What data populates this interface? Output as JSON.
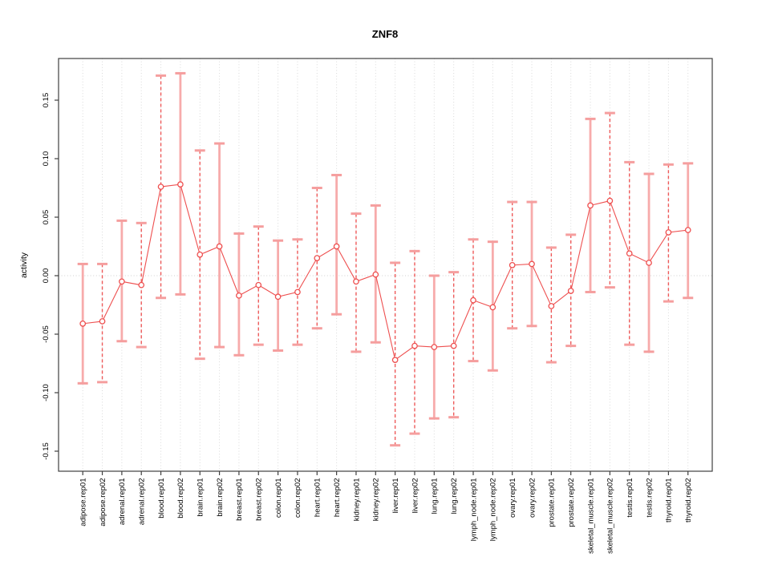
{
  "title": "ZNF8",
  "chart_data": {
    "type": "scatter",
    "title": "ZNF8",
    "xlabel": "",
    "ylabel": "activity",
    "legend": "none",
    "grid": "dotted vertical gridline per category; dotted horizontal line at y=0",
    "ylim": [
      -0.167,
      0.186
    ],
    "yticks": [
      0.15,
      0.1,
      0.05,
      0.0,
      -0.05,
      -0.1,
      -0.15
    ],
    "ytick_labels": [
      "0.15",
      "0.10",
      "0.05",
      "0.00",
      "-0.05",
      "-0.10",
      "-0.15"
    ],
    "categories": [
      "adipose.rep01",
      "adipose.rep02",
      "adrenal.rep01",
      "adrenal.rep02",
      "blood.rep01",
      "blood.rep02",
      "brain.rep01",
      "brain.rep02",
      "breast.rep01",
      "breast.rep02",
      "colon.rep01",
      "colon.rep02",
      "heart.rep01",
      "heart.rep02",
      "kidney.rep01",
      "kidney.rep02",
      "liver.rep01",
      "liver.rep02",
      "lung.rep01",
      "lung.rep02",
      "lymph_node.rep01",
      "lymph_node.rep02",
      "ovary.rep01",
      "ovary.rep02",
      "prostate.rep01",
      "prostate.rep02",
      "skeletal_muscle.rep01",
      "skeletal_muscle.rep02",
      "testis.rep01",
      "testis.rep02",
      "thyroid.rep01",
      "thyroid.rep02"
    ],
    "series": [
      {
        "name": "activity",
        "mid": [
          -0.041,
          -0.039,
          -0.005,
          -0.008,
          0.076,
          0.078,
          0.018,
          0.025,
          -0.017,
          -0.008,
          -0.018,
          -0.014,
          0.015,
          0.025,
          -0.005,
          0.001,
          -0.072,
          -0.06,
          -0.061,
          -0.06,
          -0.021,
          -0.027,
          0.009,
          0.01,
          -0.026,
          -0.013,
          0.06,
          0.064,
          0.019,
          0.011,
          0.037,
          0.039
        ],
        "lo": [
          -0.092,
          -0.091,
          -0.056,
          -0.061,
          -0.019,
          -0.016,
          -0.071,
          -0.061,
          -0.068,
          -0.059,
          -0.064,
          -0.059,
          -0.045,
          -0.033,
          -0.065,
          -0.057,
          -0.145,
          -0.135,
          -0.122,
          -0.121,
          -0.073,
          -0.081,
          -0.045,
          -0.043,
          -0.074,
          -0.06,
          -0.014,
          -0.01,
          -0.059,
          -0.065,
          -0.022,
          -0.019
        ],
        "hi": [
          0.01,
          0.01,
          0.047,
          0.045,
          0.171,
          0.173,
          0.107,
          0.113,
          0.036,
          0.042,
          0.03,
          0.031,
          0.075,
          0.086,
          0.053,
          0.06,
          0.011,
          0.021,
          0.0,
          0.003,
          0.031,
          0.029,
          0.063,
          0.063,
          0.024,
          0.035,
          0.134,
          0.139,
          0.097,
          0.087,
          0.095,
          0.096
        ]
      }
    ],
    "stem_styles": [
      "solid",
      "dashed",
      "solid",
      "dashed",
      "dashed",
      "solid",
      "dashed",
      "solid",
      "solid",
      "dashed",
      "solid",
      "dashed",
      "dashed",
      "solid",
      "dashed",
      "solid",
      "dashed",
      "dashed",
      "solid",
      "dashed",
      "dashed",
      "solid",
      "dashed",
      "solid",
      "dashed",
      "dashed",
      "solid",
      "dashed",
      "dashed",
      "solid",
      "dashed",
      "solid"
    ],
    "colors": {
      "point": "#ee4f4f",
      "series_line": "#ee4f4f",
      "stem_dashed": "#ee5a5a",
      "stem_solid": "#f7abab",
      "cap": "#f59e9e",
      "gridline": "#d9d9d9",
      "zero_line": "#cfcfcf",
      "box": "#404040",
      "text": "#000000"
    }
  }
}
